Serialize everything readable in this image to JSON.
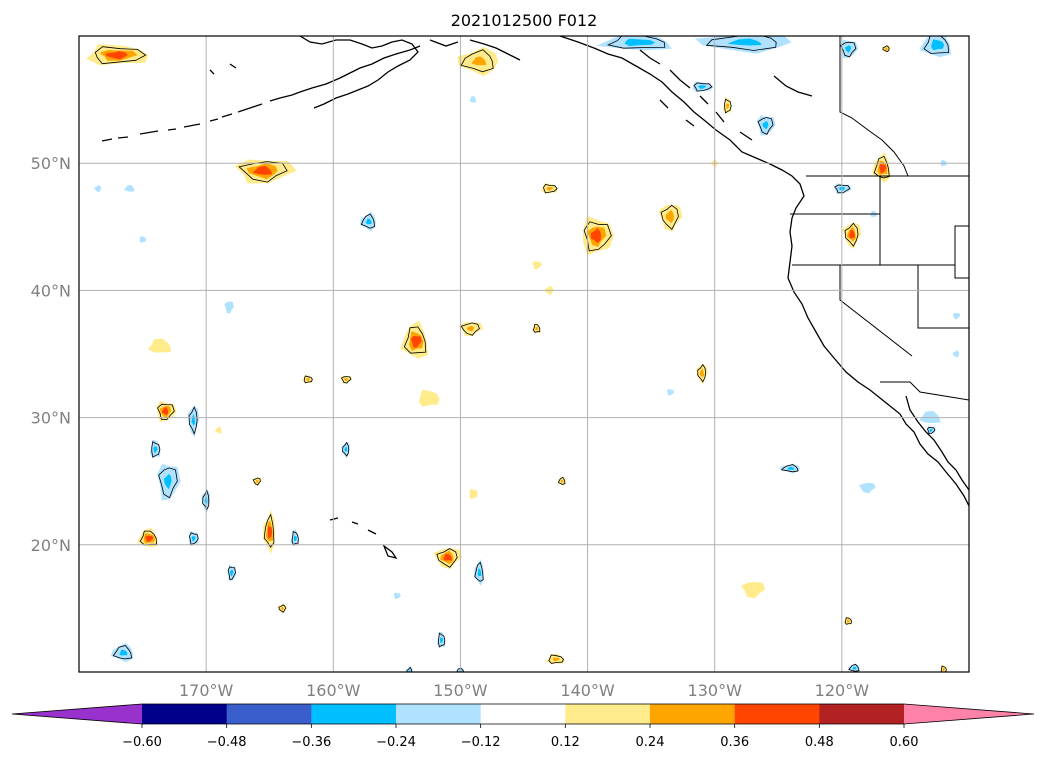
{
  "chart_data": {
    "type": "contour map",
    "title": "2021012500 F012",
    "projection": "PlateCarree",
    "lon_range": [
      -180,
      -110
    ],
    "lat_range": [
      10,
      60
    ],
    "gridlines": true,
    "lat_ticks": [
      {
        "value": 20,
        "label": "20°N"
      },
      {
        "value": 30,
        "label": "30°N"
      },
      {
        "value": 40,
        "label": "40°N"
      },
      {
        "value": 50,
        "label": "50°N"
      }
    ],
    "lon_ticks": [
      {
        "value": -170,
        "label": "170°W"
      },
      {
        "value": -160,
        "label": "160°W"
      },
      {
        "value": -150,
        "label": "150°W"
      },
      {
        "value": -140,
        "label": "140°W"
      },
      {
        "value": -130,
        "label": "130°W"
      },
      {
        "value": -120,
        "label": "120°W"
      }
    ],
    "colorbar": {
      "orientation": "horizontal",
      "extend": "both",
      "levels": [
        -0.6,
        -0.48,
        -0.36,
        -0.24,
        -0.12,
        0.12,
        0.24,
        0.36,
        0.48,
        0.6
      ],
      "tick_labels": [
        "−0.60",
        "−0.48",
        "−0.36",
        "−0.24",
        "−0.12",
        "0.12",
        "0.24",
        "0.36",
        "0.48",
        "0.60"
      ],
      "colors": [
        "#9932cc",
        "#00008b",
        "#3a5fcd",
        "#00bfff",
        "#b0e2ff",
        "#ffffff",
        "#ffeb8b",
        "#ffa500",
        "#ff4500",
        "#b22222",
        "#ff83a8"
      ]
    },
    "blobs": [
      {
        "lon": -177.0,
        "lat": 58.5,
        "rx": 3.0,
        "ry": 1.0,
        "value": 0.38
      },
      {
        "lon": -165.5,
        "lat": 49.4,
        "rx": 2.6,
        "ry": 1.2,
        "value": 0.4
      },
      {
        "lon": -178.5,
        "lat": 48.0,
        "rx": 0.3,
        "ry": 0.3,
        "value": -0.14
      },
      {
        "lon": -176.0,
        "lat": 48.0,
        "rx": 0.5,
        "ry": 0.3,
        "value": -0.14
      },
      {
        "lon": -175.0,
        "lat": 44.0,
        "rx": 0.3,
        "ry": 0.3,
        "value": -0.14
      },
      {
        "lon": -168.2,
        "lat": 38.7,
        "rx": 0.4,
        "ry": 0.6,
        "value": -0.14
      },
      {
        "lon": -157.2,
        "lat": 45.4,
        "rx": 0.8,
        "ry": 0.8,
        "value": -0.26
      },
      {
        "lon": -173.6,
        "lat": 35.6,
        "rx": 1.1,
        "ry": 0.7,
        "value": 0.14
      },
      {
        "lon": -173.2,
        "lat": 30.5,
        "rx": 0.9,
        "ry": 1.0,
        "value": 0.4
      },
      {
        "lon": -171.0,
        "lat": 29.8,
        "rx": 0.5,
        "ry": 1.4,
        "value": -0.26
      },
      {
        "lon": -169.0,
        "lat": 29.0,
        "rx": 0.3,
        "ry": 0.3,
        "value": 0.14
      },
      {
        "lon": -174.0,
        "lat": 27.5,
        "rx": 0.5,
        "ry": 0.9,
        "value": -0.26
      },
      {
        "lon": -173.0,
        "lat": 25.0,
        "rx": 1.0,
        "ry": 1.8,
        "value": -0.27
      },
      {
        "lon": -170.0,
        "lat": 23.5,
        "rx": 0.4,
        "ry": 1.0,
        "value": -0.26
      },
      {
        "lon": -174.5,
        "lat": 20.5,
        "rx": 1.0,
        "ry": 0.9,
        "value": 0.4
      },
      {
        "lon": -171.0,
        "lat": 20.5,
        "rx": 0.5,
        "ry": 0.7,
        "value": -0.26
      },
      {
        "lon": -166.0,
        "lat": 25.0,
        "rx": 0.4,
        "ry": 0.4,
        "value": 0.25
      },
      {
        "lon": -165.0,
        "lat": 21.0,
        "rx": 0.6,
        "ry": 1.8,
        "value": 0.4
      },
      {
        "lon": -163.0,
        "lat": 20.5,
        "rx": 0.4,
        "ry": 0.8,
        "value": -0.26
      },
      {
        "lon": -168.0,
        "lat": 17.8,
        "rx": 0.4,
        "ry": 0.8,
        "value": -0.28
      },
      {
        "lon": -164.0,
        "lat": 15.0,
        "rx": 0.4,
        "ry": 0.4,
        "value": 0.25
      },
      {
        "lon": -176.5,
        "lat": 11.5,
        "rx": 1.1,
        "ry": 0.8,
        "value": -0.26
      },
      {
        "lon": -162.0,
        "lat": 33.0,
        "rx": 0.5,
        "ry": 0.4,
        "value": 0.25
      },
      {
        "lon": -159.0,
        "lat": 33.0,
        "rx": 0.5,
        "ry": 0.4,
        "value": 0.25
      },
      {
        "lon": -159.0,
        "lat": 27.5,
        "rx": 0.4,
        "ry": 0.7,
        "value": -0.26
      },
      {
        "lon": -153.5,
        "lat": 36.0,
        "rx": 1.3,
        "ry": 1.7,
        "value": 0.38
      },
      {
        "lon": -152.5,
        "lat": 31.5,
        "rx": 1.0,
        "ry": 0.8,
        "value": 0.18
      },
      {
        "lon": -149.2,
        "lat": 37.0,
        "rx": 1.0,
        "ry": 0.7,
        "value": 0.26
      },
      {
        "lon": -148.5,
        "lat": 58.0,
        "rx": 2.0,
        "ry": 1.2,
        "value": 0.26
      },
      {
        "lon": -149.0,
        "lat": 55.0,
        "rx": 0.3,
        "ry": 0.3,
        "value": -0.14
      },
      {
        "lon": -149.0,
        "lat": 24.0,
        "rx": 0.4,
        "ry": 0.5,
        "value": 0.14
      },
      {
        "lon": -151.0,
        "lat": 19.0,
        "rx": 1.2,
        "ry": 1.0,
        "value": 0.4
      },
      {
        "lon": -148.5,
        "lat": 17.8,
        "rx": 0.5,
        "ry": 1.1,
        "value": -0.26
      },
      {
        "lon": -151.5,
        "lat": 12.5,
        "rx": 0.4,
        "ry": 0.8,
        "value": -0.26
      },
      {
        "lon": -155.0,
        "lat": 16.0,
        "rx": 0.3,
        "ry": 0.3,
        "value": -0.14
      },
      {
        "lon": -154.0,
        "lat": 10.0,
        "rx": 0.3,
        "ry": 0.5,
        "value": -0.26
      },
      {
        "lon": -150.0,
        "lat": 10.0,
        "rx": 0.5,
        "ry": 0.4,
        "value": -0.26
      },
      {
        "lon": -143.0,
        "lat": 48.0,
        "rx": 0.8,
        "ry": 0.5,
        "value": 0.26
      },
      {
        "lon": -144.0,
        "lat": 42.0,
        "rx": 0.4,
        "ry": 0.4,
        "value": 0.14
      },
      {
        "lon": -143.0,
        "lat": 40.0,
        "rx": 0.4,
        "ry": 0.4,
        "value": 0.14
      },
      {
        "lon": -144.0,
        "lat": 37.0,
        "rx": 0.4,
        "ry": 0.5,
        "value": 0.25
      },
      {
        "lon": -139.3,
        "lat": 44.3,
        "rx": 1.5,
        "ry": 1.8,
        "value": 0.38
      },
      {
        "lon": -133.5,
        "lat": 45.8,
        "rx": 1.0,
        "ry": 1.3,
        "value": 0.3
      },
      {
        "lon": -142.0,
        "lat": 25.0,
        "rx": 0.4,
        "ry": 0.4,
        "value": 0.25
      },
      {
        "lon": -142.5,
        "lat": 11.0,
        "rx": 0.9,
        "ry": 0.5,
        "value": 0.26
      },
      {
        "lon": -133.5,
        "lat": 32.0,
        "rx": 0.3,
        "ry": 0.3,
        "value": -0.14
      },
      {
        "lon": -131.0,
        "lat": 33.5,
        "rx": 0.5,
        "ry": 0.9,
        "value": 0.3
      },
      {
        "lon": -130.0,
        "lat": 50.0,
        "rx": 0.3,
        "ry": 0.3,
        "value": 0.14
      },
      {
        "lon": -129.0,
        "lat": 54.5,
        "rx": 0.4,
        "ry": 0.8,
        "value": 0.26
      },
      {
        "lon": -126.0,
        "lat": 53.0,
        "rx": 0.8,
        "ry": 1.0,
        "value": -0.26
      },
      {
        "lon": -127.5,
        "lat": 59.5,
        "rx": 4.5,
        "ry": 0.9,
        "value": -0.27
      },
      {
        "lon": -136.0,
        "lat": 59.5,
        "rx": 3.5,
        "ry": 0.8,
        "value": -0.3
      },
      {
        "lon": -131.0,
        "lat": 56.0,
        "rx": 1.0,
        "ry": 0.5,
        "value": -0.26
      },
      {
        "lon": -127.0,
        "lat": 16.5,
        "rx": 1.0,
        "ry": 0.8,
        "value": 0.14
      },
      {
        "lon": -124.0,
        "lat": 26.0,
        "rx": 1.0,
        "ry": 0.4,
        "value": -0.26
      },
      {
        "lon": -119.5,
        "lat": 14.0,
        "rx": 0.4,
        "ry": 0.4,
        "value": 0.25
      },
      {
        "lon": -120.0,
        "lat": 48.0,
        "rx": 0.8,
        "ry": 0.5,
        "value": -0.26
      },
      {
        "lon": -119.2,
        "lat": 44.4,
        "rx": 0.8,
        "ry": 1.2,
        "value": 0.38
      },
      {
        "lon": -116.8,
        "lat": 49.6,
        "rx": 0.9,
        "ry": 1.3,
        "value": 0.38
      },
      {
        "lon": -117.5,
        "lat": 46.0,
        "rx": 0.3,
        "ry": 0.3,
        "value": -0.14
      },
      {
        "lon": -119.5,
        "lat": 59.0,
        "rx": 0.8,
        "ry": 0.9,
        "value": -0.26
      },
      {
        "lon": -116.5,
        "lat": 59.0,
        "rx": 0.4,
        "ry": 0.3,
        "value": 0.25
      },
      {
        "lon": -112.5,
        "lat": 59.3,
        "rx": 1.5,
        "ry": 1.2,
        "value": -0.3
      },
      {
        "lon": -112.0,
        "lat": 50.0,
        "rx": 0.3,
        "ry": 0.3,
        "value": -0.14
      },
      {
        "lon": -111.0,
        "lat": 38.0,
        "rx": 0.3,
        "ry": 0.3,
        "value": -0.14
      },
      {
        "lon": -111.0,
        "lat": 35.0,
        "rx": 0.3,
        "ry": 0.3,
        "value": -0.14
      },
      {
        "lon": -113.0,
        "lat": 30.0,
        "rx": 1.0,
        "ry": 0.6,
        "value": -0.14
      },
      {
        "lon": -113.0,
        "lat": 29.0,
        "rx": 0.4,
        "ry": 0.4,
        "value": -0.26
      },
      {
        "lon": -118.0,
        "lat": 24.5,
        "rx": 0.7,
        "ry": 0.5,
        "value": -0.14
      },
      {
        "lon": -119.0,
        "lat": 10.3,
        "rx": 0.6,
        "ry": 0.4,
        "value": -0.26
      },
      {
        "lon": -112.0,
        "lat": 10.2,
        "rx": 0.3,
        "ry": 0.4,
        "value": 0.25
      }
    ]
  }
}
